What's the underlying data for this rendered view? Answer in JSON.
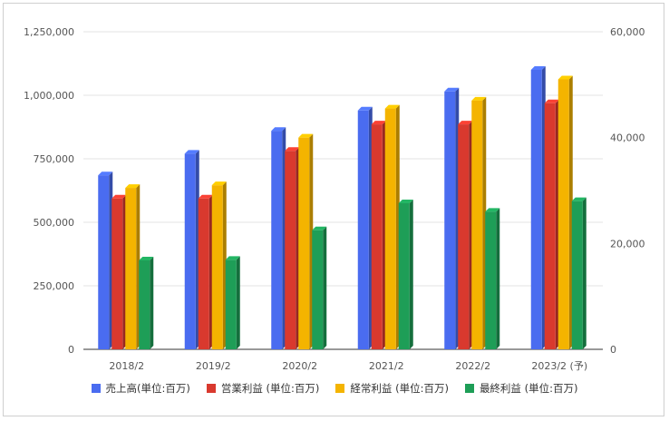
{
  "chart_data": {
    "type": "bar",
    "title": "",
    "categories": [
      "2018/2",
      "2019/2",
      "2020/2",
      "2021/2",
      "2022/2",
      "2023/2 (予)"
    ],
    "left_axis": {
      "range": [
        0,
        1250000
      ],
      "ticks": [
        "0",
        "250,000",
        "500,000",
        "750,000",
        "1,000,000",
        "1,250,000"
      ]
    },
    "right_axis": {
      "range": [
        0,
        60000
      ],
      "ticks": [
        "0",
        "20,000",
        "40,000",
        "60,000"
      ]
    },
    "grid": true,
    "legend_position": "bottom",
    "series": [
      {
        "name": "売上高(単位:百万)",
        "axis": "left",
        "color": "#4a6cf0",
        "values": [
          685000,
          770000,
          860000,
          940000,
          1015000,
          1100000
        ]
      },
      {
        "name": "営業利益 (単位:百万)",
        "axis": "right",
        "color": "#d9392e",
        "values": [
          28500,
          28500,
          37500,
          42500,
          42500,
          46500
        ]
      },
      {
        "name": "経常利益 (単位:百万)",
        "axis": "right",
        "color": "#f4b400",
        "values": [
          30500,
          31000,
          40000,
          45500,
          47000,
          51000
        ]
      },
      {
        "name": "最終利益 (単位:百万)",
        "axis": "right",
        "color": "#1e9e57",
        "values": [
          16800,
          16900,
          22500,
          27600,
          26000,
          28000
        ]
      }
    ]
  }
}
